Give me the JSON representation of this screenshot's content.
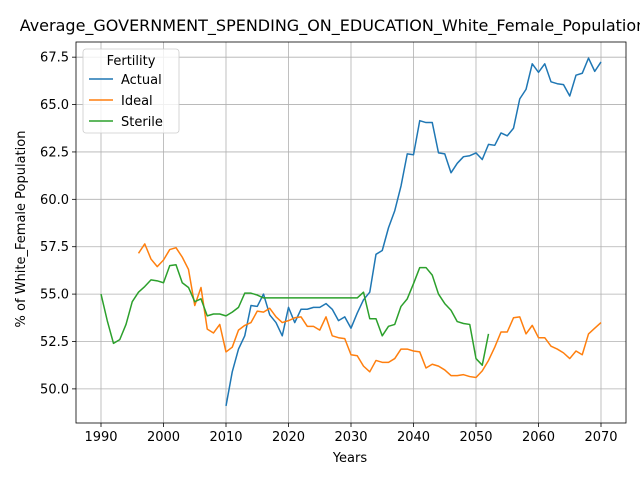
{
  "chart_data": {
    "type": "line",
    "title": "Average_GOVERNMENT_SPENDING_ON_EDUCATION_White_Female_Population",
    "xlabel": "Years",
    "ylabel": "% of White_Female Population",
    "xlim": [
      1986,
      2074
    ],
    "ylim": [
      48.2,
      68.3
    ],
    "xticks": [
      1990,
      2000,
      2010,
      2020,
      2030,
      2040,
      2050,
      2060,
      2070
    ],
    "yticks": [
      50.0,
      52.5,
      55.0,
      57.5,
      60.0,
      62.5,
      65.0,
      67.5
    ],
    "ytick_labels": [
      "50.0",
      "52.5",
      "55.0",
      "57.5",
      "60.0",
      "62.5",
      "65.0",
      "67.5"
    ],
    "grid": true,
    "legend": {
      "title": "Fertility",
      "position": "upper-left"
    },
    "series": [
      {
        "name": "Actual",
        "color": "#1f77b4",
        "x": [
          2010,
          2011,
          2012,
          2013,
          2014,
          2015,
          2016,
          2017,
          2018,
          2019,
          2020,
          2021,
          2022,
          2023,
          2024,
          2025,
          2026,
          2027,
          2028,
          2029,
          2030,
          2031,
          2032,
          2033,
          2034,
          2035,
          2036,
          2037,
          2038,
          2039,
          2040,
          2041,
          2042,
          2043,
          2044,
          2045,
          2046,
          2047,
          2048,
          2049,
          2050,
          2051,
          2052,
          2053,
          2054,
          2055,
          2056,
          2057,
          2058,
          2059,
          2060,
          2061,
          2062,
          2063,
          2064,
          2065,
          2066,
          2067,
          2068,
          2069,
          2070
        ],
        "values": [
          49.1,
          50.9,
          52.1,
          52.8,
          54.4,
          54.35,
          55.0,
          53.9,
          53.5,
          52.8,
          54.3,
          53.5,
          54.2,
          54.2,
          54.3,
          54.3,
          54.5,
          54.2,
          53.6,
          53.8,
          53.2,
          54.0,
          54.7,
          55.1,
          57.1,
          57.3,
          58.5,
          59.4,
          60.7,
          62.4,
          62.35,
          64.15,
          64.05,
          64.05,
          62.45,
          62.4,
          61.4,
          61.9,
          62.25,
          62.3,
          62.45,
          62.1,
          62.9,
          62.85,
          63.5,
          63.35,
          63.75,
          65.3,
          65.8,
          67.15,
          66.7,
          67.15,
          66.2,
          66.1,
          66.05,
          65.45,
          66.55,
          66.65,
          67.45,
          66.75,
          67.25
        ]
      },
      {
        "name": "Ideal",
        "color": "#ff7f0e",
        "x": [
          1996,
          1997,
          1998,
          1999,
          2000,
          2001,
          2002,
          2003,
          2004,
          2005,
          2006,
          2007,
          2008,
          2009,
          2010,
          2011,
          2012,
          2013,
          2014,
          2015,
          2016,
          2017,
          2018,
          2019,
          2020,
          2021,
          2022,
          2023,
          2024,
          2025,
          2026,
          2027,
          2028,
          2029,
          2030,
          2031,
          2032,
          2033,
          2034,
          2035,
          2036,
          2037,
          2038,
          2039,
          2040,
          2041,
          2042,
          2043,
          2044,
          2045,
          2046,
          2047,
          2048,
          2049,
          2050,
          2051,
          2052,
          2053,
          2054,
          2055,
          2056,
          2057,
          2058,
          2059,
          2060,
          2061,
          2062,
          2063,
          2064,
          2065,
          2066,
          2067,
          2068,
          2069,
          2070
        ],
        "values": [
          57.15,
          57.65,
          56.85,
          56.45,
          56.8,
          57.35,
          57.45,
          56.95,
          56.3,
          54.4,
          55.35,
          53.15,
          52.95,
          53.4,
          51.95,
          52.2,
          53.1,
          53.35,
          53.5,
          54.1,
          54.05,
          54.25,
          53.8,
          53.5,
          53.6,
          53.75,
          53.8,
          53.3,
          53.3,
          53.1,
          53.8,
          52.8,
          52.7,
          52.65,
          51.8,
          51.75,
          51.2,
          50.9,
          51.5,
          51.4,
          51.4,
          51.6,
          52.1,
          52.1,
          52.0,
          51.95,
          51.1,
          51.3,
          51.2,
          51.0,
          50.7,
          50.7,
          50.75,
          50.65,
          50.6,
          50.95,
          51.5,
          52.2,
          53.0,
          53.0,
          53.75,
          53.8,
          52.9,
          53.35,
          52.7,
          52.7,
          52.25,
          52.1,
          51.9,
          51.6,
          52.0,
          51.8,
          52.9,
          53.2,
          53.5
        ]
      },
      {
        "name": "Sterile",
        "color": "#2ca02c",
        "x": [
          1990,
          1991,
          1992,
          1993,
          1994,
          1995,
          1996,
          1997,
          1998,
          1999,
          2000,
          2001,
          2002,
          2003,
          2004,
          2005,
          2006,
          2007,
          2008,
          2009,
          2010,
          2011,
          2012,
          2013,
          2014,
          2015,
          2016,
          2017,
          2018,
          2019,
          2020,
          2021,
          2022,
          2023,
          2024,
          2025,
          2026,
          2027,
          2028,
          2029,
          2030,
          2031,
          2032,
          2033,
          2034,
          2035,
          2036,
          2037,
          2038,
          2039,
          2040,
          2041,
          2042,
          2043,
          2044,
          2045,
          2046,
          2047,
          2048,
          2049,
          2050,
          2051,
          2052
        ],
        "values": [
          55.0,
          53.6,
          52.4,
          52.6,
          53.4,
          54.6,
          55.1,
          55.4,
          55.75,
          55.7,
          55.6,
          56.5,
          56.55,
          55.6,
          55.35,
          54.6,
          54.75,
          53.85,
          53.95,
          53.95,
          53.85,
          54.05,
          54.3,
          55.05,
          55.05,
          54.95,
          54.8,
          54.8,
          54.8,
          54.8,
          54.8,
          54.8,
          54.8,
          54.8,
          54.8,
          54.8,
          54.8,
          54.8,
          54.8,
          54.8,
          54.8,
          54.8,
          55.1,
          53.7,
          53.7,
          52.8,
          53.3,
          53.4,
          54.35,
          54.75,
          55.55,
          56.4,
          56.4,
          56.0,
          55.0,
          54.5,
          54.15,
          53.55,
          53.45,
          53.4,
          51.6,
          51.25,
          52.9
        ]
      }
    ]
  }
}
